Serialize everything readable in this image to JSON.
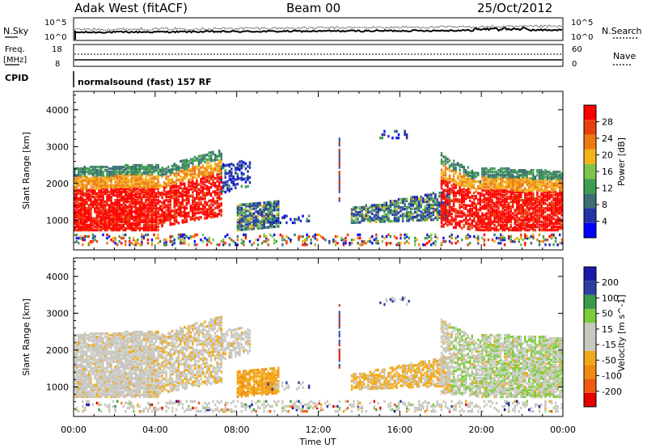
{
  "header": {
    "radar": "Adak West (fitACF)",
    "beam": "Beam 00",
    "date": "25/Oct/2012"
  },
  "top_panel": {
    "left_label": "N.Sky",
    "right_label": "N.Search",
    "left_ticks": [
      "10^5",
      "10^0"
    ],
    "right_ticks": [
      "10^5",
      "10^0"
    ]
  },
  "freq_panel": {
    "label_line1": "Freq.",
    "label_line2": "[MHz]",
    "left_ticks": [
      "18",
      "8"
    ],
    "right_label": "Nave",
    "right_ticks": [
      "60",
      "0"
    ]
  },
  "cpid": {
    "label": "CPID",
    "text": "normalsound (fast) 157 RF"
  },
  "colors": {
    "power_scale": [
      "#0000ff",
      "#2233aa",
      "#3c6e73",
      "#3f9d50",
      "#7fc44a",
      "#f2b21a",
      "#f07a12",
      "#e8400d",
      "#ff0000"
    ],
    "velocity_scale": [
      "#e60000",
      "#ef5a10",
      "#f18a12",
      "#f2a818",
      "#c8c8c0",
      "#c8c8c0",
      "#7ccc3a",
      "#3a9a4a",
      "#2b3fa0",
      "#1a1aa8"
    ]
  },
  "chart_data": [
    {
      "type": "heatmap",
      "name": "power",
      "ylabel": "Slant Range [km]",
      "yticks": [
        "1000",
        "2000",
        "3000",
        "4000"
      ],
      "ylim": [
        200,
        4500
      ],
      "colorbar_label": "Power [dB]",
      "colorbar_ticks": [
        "4",
        "8",
        "12",
        "16",
        "20",
        "24",
        "28"
      ],
      "xlim": [
        "00:00",
        "24:00"
      ]
    },
    {
      "type": "heatmap",
      "name": "velocity",
      "ylabel": "Slant Range [km]",
      "yticks": [
        "1000",
        "2000",
        "3000",
        "4000"
      ],
      "ylim": [
        200,
        4500
      ],
      "colorbar_label": "Velocity [m s^-1]",
      "colorbar_ticks": [
        "-200",
        "-100",
        "-50",
        "-15",
        "15",
        "50",
        "100",
        "200"
      ],
      "xlim": [
        "00:00",
        "24:00"
      ]
    }
  ],
  "x_axis": {
    "ticks": [
      "00:00",
      "04:00",
      "08:00",
      "12:00",
      "16:00",
      "20:00",
      "00:00"
    ],
    "label": "Time UT"
  }
}
